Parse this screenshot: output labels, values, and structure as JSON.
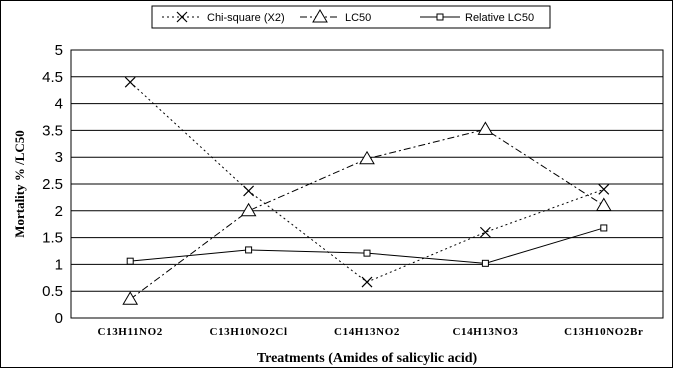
{
  "chart_data": {
    "type": "line",
    "categories": [
      "C13H11NO2",
      "C13H10NO2Cl",
      "C14H13NO2",
      "C14H13NO3",
      "C13H10NO2Br"
    ],
    "xlabel": "Treatments (Amides of salicylic acid)",
    "ylabel": "Mortality % /LC50",
    "ylim": [
      0,
      5
    ],
    "yticks": [
      "0",
      "0.5",
      "1",
      "1.5",
      "2",
      "2.5",
      "3",
      "3.5",
      "4",
      "4.5",
      "5"
    ],
    "grid": "horizontal",
    "legend_position": "top",
    "series": [
      {
        "name": "Chi-square (X2)",
        "values": [
          4.4,
          2.37,
          0.67,
          1.6,
          2.4
        ],
        "marker": "x",
        "dash": "dotted",
        "color": "#000000"
      },
      {
        "name": "LC50",
        "values": [
          0.35,
          2.0,
          2.97,
          3.52,
          2.1
        ],
        "marker": "triangle",
        "dash": "dash-dot",
        "color": "#000000"
      },
      {
        "name": "Relative LC50",
        "values": [
          1.06,
          1.27,
          1.21,
          1.02,
          1.68
        ],
        "marker": "square",
        "dash": "solid",
        "color": "#000000"
      }
    ]
  }
}
